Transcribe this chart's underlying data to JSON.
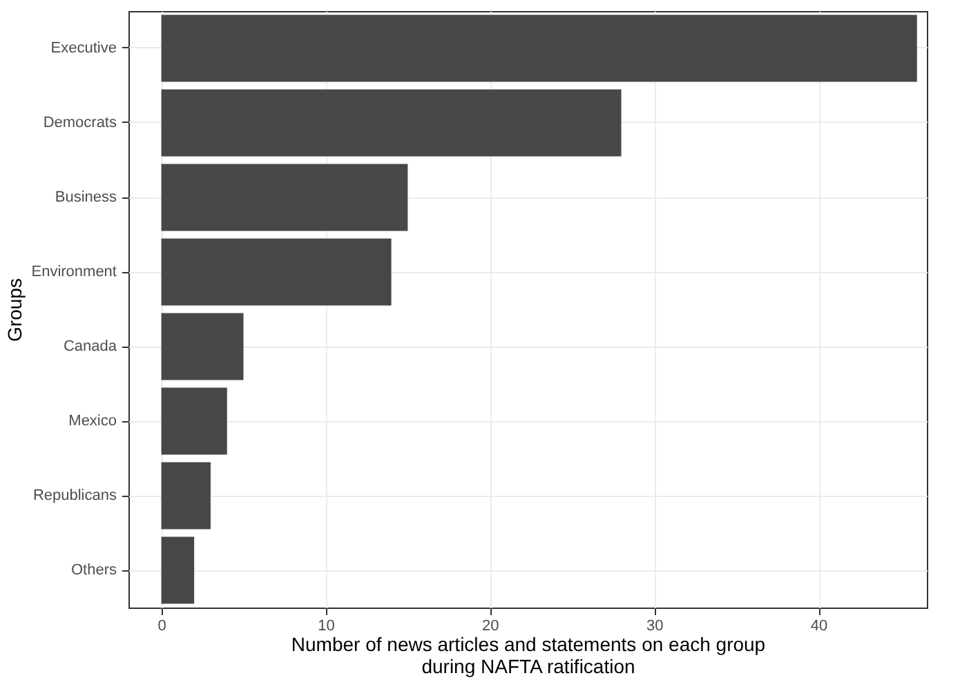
{
  "chart_data": {
    "type": "bar",
    "orientation": "horizontal",
    "categories": [
      "Executive",
      "Democrats",
      "Business",
      "Environment",
      "Canada",
      "Mexico",
      "Republicans",
      "Others"
    ],
    "values": [
      46,
      28,
      15,
      14,
      5,
      4,
      3,
      2
    ],
    "color": "#474747",
    "xlim": [
      -2,
      46.6
    ],
    "xticks": [
      0,
      10,
      20,
      30,
      40
    ],
    "xlabel": "Number of news articles and statements on each group\nduring NAFTA ratification",
    "ylabel": "Groups",
    "grid": true
  }
}
